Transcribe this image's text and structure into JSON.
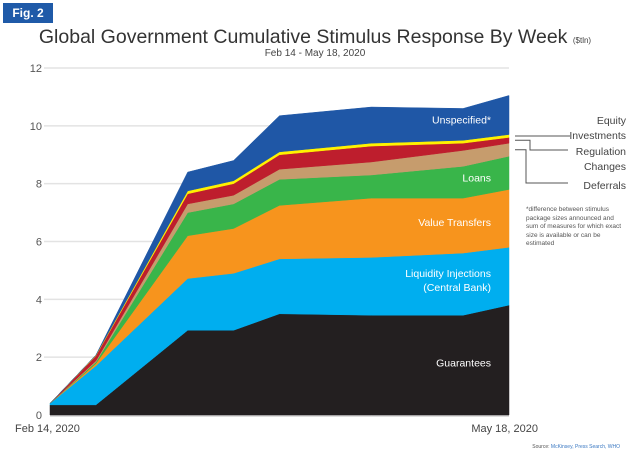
{
  "badge": "Fig. 2",
  "header": {
    "title": "Global Government Cumulative Stimulus Response By Week",
    "unit": "($tln)",
    "subtitle": "Feb 14 - May 18, 2020"
  },
  "note": "*difference between stimulus package sizes announced and sum of measures for which exact size is available or can be estimated",
  "source": {
    "prefix": "Source:",
    "text": "McKinsey, Press Search, WHO"
  },
  "chart_data": {
    "type": "area",
    "stacked": true,
    "title": "Global Government Cumulative Stimulus Response By Week ($tln)",
    "subtitle": "Feb 14 - May 18, 2020",
    "xlabel": "",
    "ylabel": "",
    "ylim": [
      0,
      12
    ],
    "yticks": [
      0,
      2,
      4,
      6,
      8,
      10,
      12
    ],
    "grid": true,
    "x_week_index": [
      0,
      1,
      3,
      4,
      5,
      7,
      9,
      10
    ],
    "x_tick_labels": [
      {
        "index": 0,
        "label": "Feb 14, 2020"
      },
      {
        "index": 10,
        "label": "May 18, 2020"
      }
    ],
    "series": [
      {
        "name": "Guarantees",
        "color": "#231f20",
        "label_color": "#ffffff",
        "values": [
          0.35,
          0.35,
          2.93,
          2.93,
          3.5,
          3.45,
          3.45,
          3.8
        ]
      },
      {
        "name": "Liquidity Injections (Central Bank)",
        "label_lines": [
          "Liquidity Injections",
          "(Central Bank)"
        ],
        "color": "#00aeef",
        "label_color": "#ffffff",
        "values": [
          0.05,
          1.35,
          1.79,
          1.97,
          1.9,
          2.0,
          2.15,
          2.0
        ]
      },
      {
        "name": "Value Transfers",
        "color": "#f7941d",
        "label_color": "#ffffff",
        "values": [
          0.0,
          0.08,
          1.48,
          1.55,
          1.85,
          2.05,
          1.9,
          2.0
        ]
      },
      {
        "name": "Loans",
        "color": "#39b54a",
        "label_color": "#ffffff",
        "values": [
          0.0,
          0.05,
          0.8,
          0.85,
          0.9,
          0.8,
          1.1,
          1.15
        ]
      },
      {
        "name": "Deferrals",
        "color": "#c69c6d",
        "label_color": "#444444",
        "values": [
          0.0,
          0.04,
          0.3,
          0.3,
          0.35,
          0.45,
          0.55,
          0.45
        ]
      },
      {
        "name": "Regulation Changes",
        "color": "#be1e2d",
        "label_color": "#444444",
        "values": [
          0.0,
          0.18,
          0.35,
          0.4,
          0.5,
          0.55,
          0.25,
          0.2
        ]
      },
      {
        "name": "Equity Investments",
        "color": "#fff200",
        "label_color": "#444444",
        "values": [
          0.0,
          0.02,
          0.1,
          0.1,
          0.1,
          0.1,
          0.1,
          0.1
        ]
      },
      {
        "name": "Unspecified*",
        "color": "#1f57a6",
        "label_color": "#ffffff",
        "values": [
          0.0,
          0.0,
          0.65,
          0.7,
          1.25,
          1.25,
          1.1,
          1.35
        ]
      }
    ],
    "side_labels": [
      {
        "series": "Equity Investments",
        "lines": [
          "Equity",
          "Investments"
        ]
      },
      {
        "series": "Regulation Changes",
        "lines": [
          "Regulation",
          "Changes"
        ]
      },
      {
        "series": "Deferrals",
        "lines": [
          "Deferrals"
        ]
      }
    ]
  }
}
